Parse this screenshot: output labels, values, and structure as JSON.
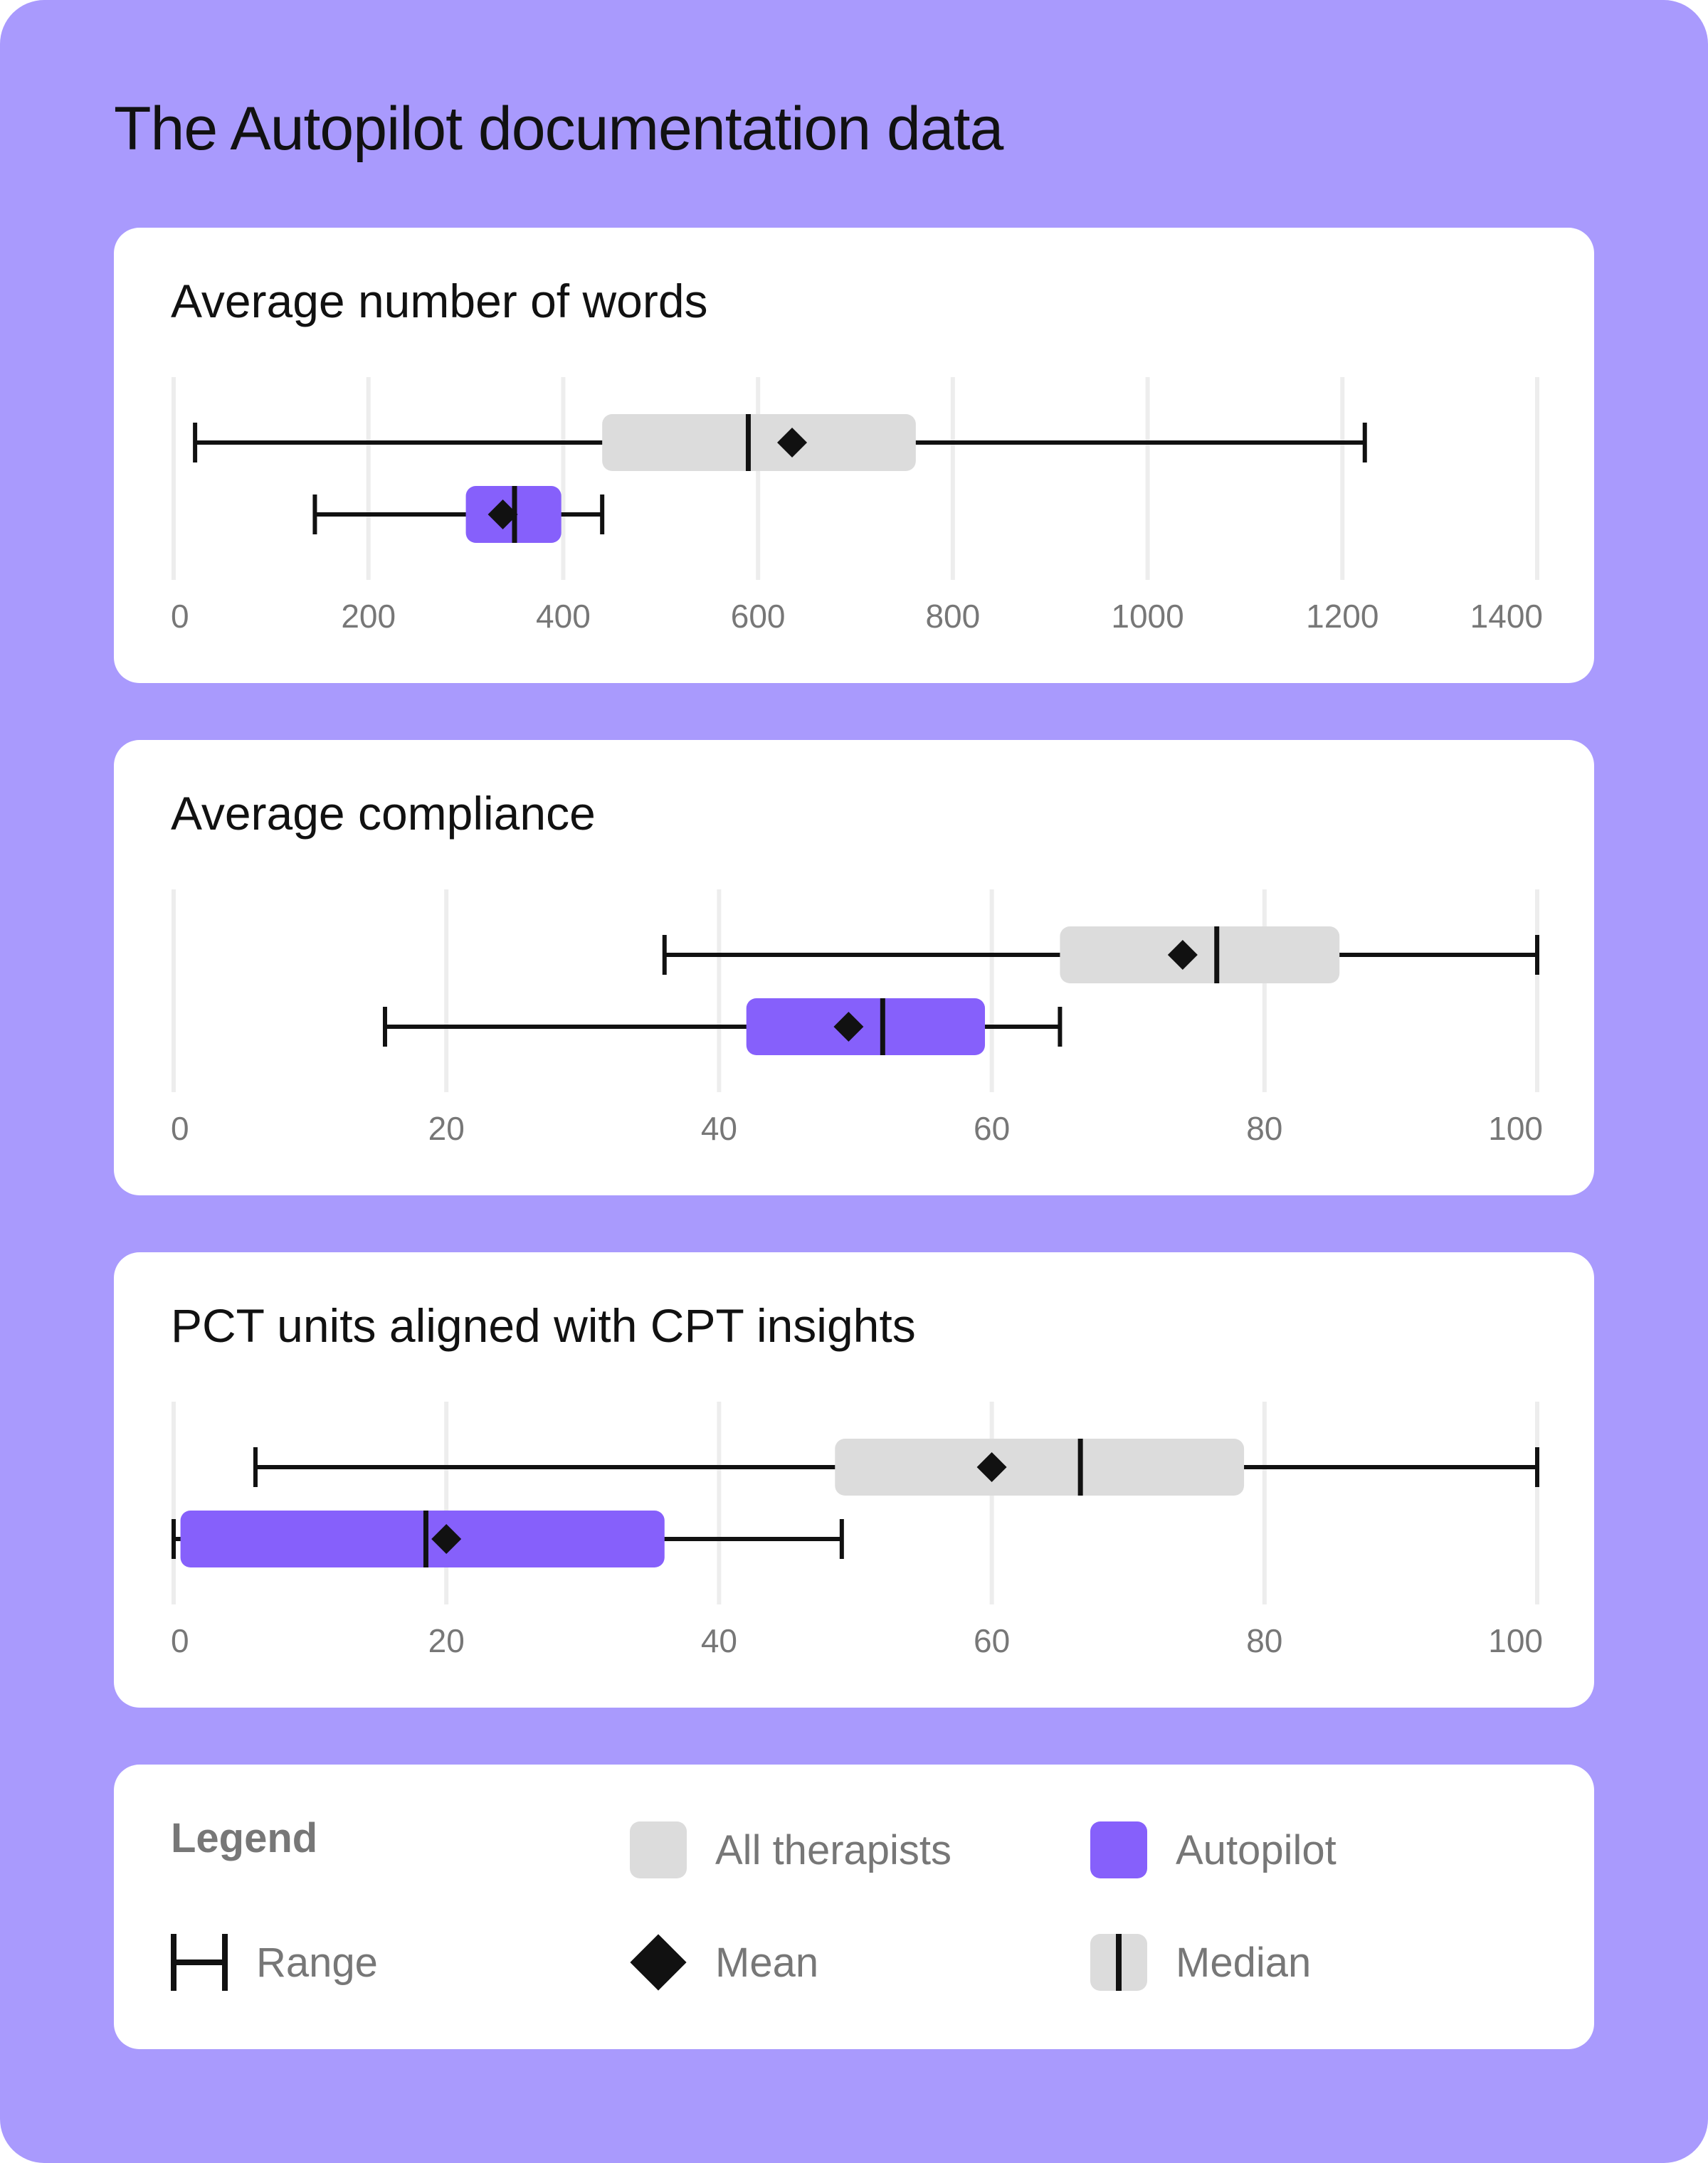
{
  "title": "The Autopilot documentation data",
  "colors": {
    "background": "#a99afd",
    "all": "#dcdcdc",
    "autopilot": "#8660fb",
    "ink": "#111111",
    "grid": "#ededed",
    "tick": "#777777"
  },
  "chart_data": [
    {
      "type": "boxplot",
      "title": "Average number of words",
      "xlim": [
        0,
        1400
      ],
      "ticks": [
        0,
        200,
        400,
        600,
        800,
        1000,
        1200,
        1400
      ],
      "tick_labels": [
        "0",
        "200",
        "400",
        "600",
        "800",
        "1000",
        "1200",
        "1400"
      ],
      "series": [
        {
          "name": "All therapists",
          "min": 22,
          "q1": 440,
          "median": 590,
          "mean": 635,
          "q3": 762,
          "max": 1223
        },
        {
          "name": "Autopilot",
          "min": 145,
          "q1": 300,
          "median": 350,
          "mean": 338,
          "q3": 398,
          "max": 440
        }
      ]
    },
    {
      "type": "boxplot",
      "title": "Average compliance",
      "xlim": [
        0,
        100
      ],
      "ticks": [
        0,
        20,
        40,
        60,
        80,
        100
      ],
      "tick_labels": [
        "0",
        "20",
        "40",
        "60",
        "80",
        "100"
      ],
      "series": [
        {
          "name": "All therapists",
          "min": 36,
          "q1": 65,
          "median": 76.5,
          "mean": 74,
          "q3": 85.5,
          "max": 100
        },
        {
          "name": "Autopilot",
          "min": 15.5,
          "q1": 42,
          "median": 52,
          "mean": 49.5,
          "q3": 59.5,
          "max": 65
        }
      ]
    },
    {
      "type": "boxplot",
      "title": "PCT units aligned with CPT insights",
      "xlim": [
        0,
        100
      ],
      "ticks": [
        0,
        20,
        40,
        60,
        80,
        100
      ],
      "tick_labels": [
        "0",
        "20",
        "40",
        "60",
        "80",
        "100"
      ],
      "series": [
        {
          "name": "All therapists",
          "min": 6,
          "q1": 48.5,
          "median": 66.5,
          "mean": 60,
          "q3": 78.5,
          "max": 100
        },
        {
          "name": "Autopilot",
          "min": 0,
          "q1": 0.5,
          "median": 18.5,
          "mean": 20,
          "q3": 36,
          "max": 49
        }
      ]
    }
  ],
  "legend": {
    "title": "Legend",
    "items": {
      "all": "All therapists",
      "autopilot": "Autopilot",
      "range": "Range",
      "mean": "Mean",
      "median": "Median"
    }
  }
}
